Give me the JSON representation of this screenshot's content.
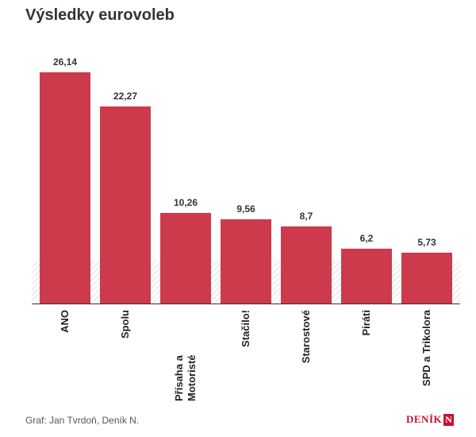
{
  "chart_data": {
    "type": "bar",
    "title": "Výsledky eurovoleb",
    "categories": [
      "ANO",
      "Spolu",
      "Přísaha a Motoristé",
      "Stačilo!",
      "Starostové",
      "Piráti",
      "SPD a Trikolora"
    ],
    "values": [
      26.14,
      22.27,
      10.26,
      9.56,
      8.7,
      6.2,
      5.73
    ],
    "value_labels": [
      "26,14",
      "22,27",
      "10,26",
      "9,56",
      "8,7",
      "6,2",
      "5,73"
    ],
    "color": "#cc3a4c",
    "source": "Graf: Jan Tvrdoň, Deník N.",
    "logo": "DENÍK",
    "logo_mark": "N"
  }
}
